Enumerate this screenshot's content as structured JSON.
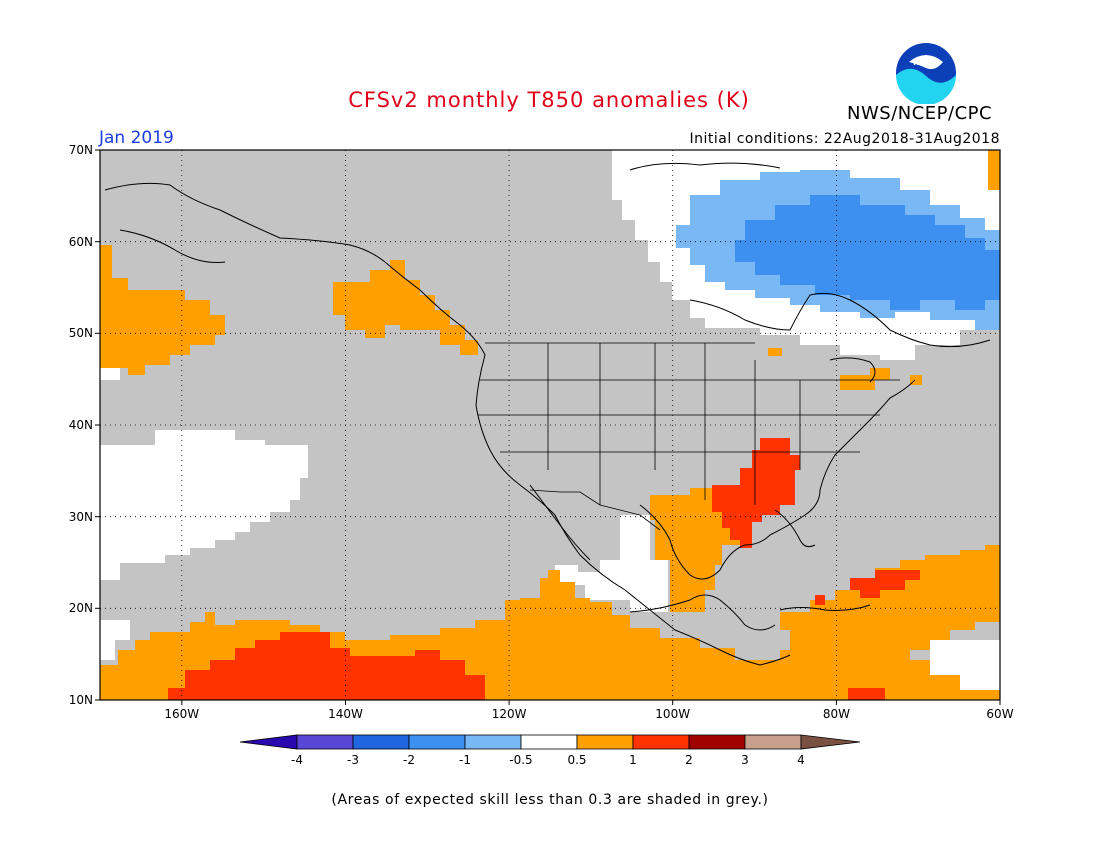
{
  "header": {
    "title": "CFSv2 monthly T850 anomalies (K)",
    "month": "Jan 2019",
    "initial_conditions": "Initial conditions: 22Aug2018-31Aug2018",
    "agency": "NWS/NCEP/CPC",
    "logo_text": "NOAA"
  },
  "map": {
    "lat_labels": [
      "70N",
      "60N",
      "50N",
      "40N",
      "30N",
      "20N",
      "10N"
    ],
    "lon_labels": [
      "160W",
      "140W",
      "120W",
      "100W",
      "80W",
      "60W"
    ]
  },
  "colorbar": {
    "colors": [
      "#2a0ab0",
      "#5a46d6",
      "#1f66e0",
      "#3c91f0",
      "#78b8f5",
      "#ffffff",
      "#ff9f00",
      "#ff3300",
      "#a00000",
      "#c8a08c",
      "#7a5040"
    ],
    "labels": [
      "-4",
      "-3",
      "-2",
      "-1",
      "-0.5",
      "0.5",
      "1",
      "2",
      "3",
      "4"
    ]
  },
  "footnote": "(Areas of expected skill less than 0.3 are shaded in grey.)"
}
